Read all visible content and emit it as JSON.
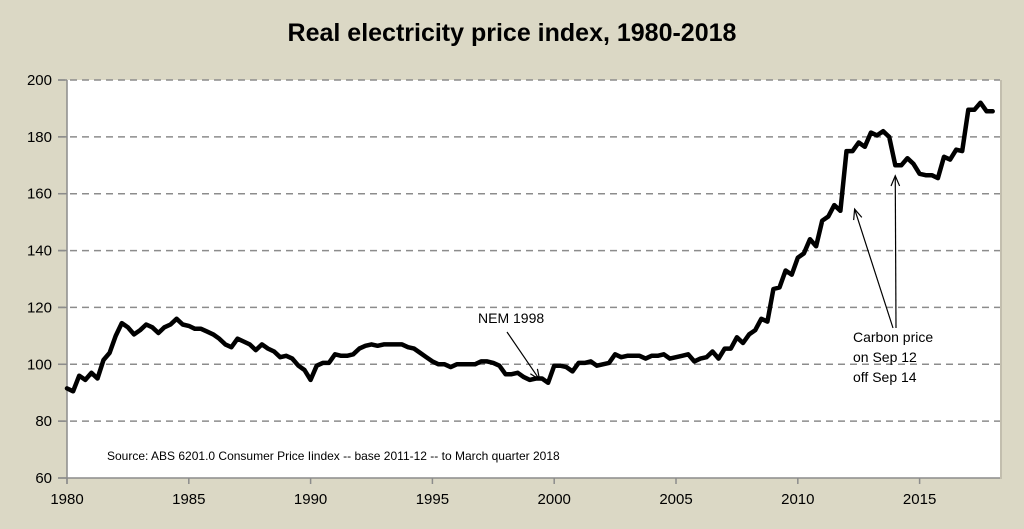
{
  "chart_data": {
    "type": "line",
    "title": "Real electricity price index, 1980-2018",
    "xlabel": "",
    "ylabel": "",
    "xlim": [
      1980,
      2018.3
    ],
    "ylim": [
      60,
      200
    ],
    "grid": true,
    "grid_style": "dashed-horizontal",
    "legend": "none",
    "x_ticks": [
      1980,
      1985,
      1990,
      1995,
      2000,
      2005,
      2010,
      2015
    ],
    "x_tick_labels": [
      "1980",
      "1985",
      "1990",
      "1995",
      "2000",
      "2005",
      "2010",
      "2015"
    ],
    "y_ticks": [
      60,
      80,
      100,
      120,
      140,
      160,
      180,
      200
    ],
    "y_tick_labels": [
      "60",
      "80",
      "100",
      "120",
      "140",
      "160",
      "180",
      "200"
    ],
    "series": [
      {
        "name": "Real electricity price index",
        "color": "#000000",
        "x": [
          1980.0,
          1980.25,
          1980.5,
          1980.75,
          1981.0,
          1981.25,
          1981.5,
          1981.75,
          1982.0,
          1982.25,
          1982.5,
          1982.75,
          1983.0,
          1983.25,
          1983.5,
          1983.75,
          1984.0,
          1984.25,
          1984.5,
          1984.75,
          1985.0,
          1985.25,
          1985.5,
          1985.75,
          1986.0,
          1986.25,
          1986.5,
          1986.75,
          1987.0,
          1987.25,
          1987.5,
          1987.75,
          1988.0,
          1988.25,
          1988.5,
          1988.75,
          1989.0,
          1989.25,
          1989.5,
          1989.75,
          1990.0,
          1990.25,
          1990.5,
          1990.75,
          1991.0,
          1991.25,
          1991.5,
          1991.75,
          1992.0,
          1992.25,
          1992.5,
          1992.75,
          1993.0,
          1993.25,
          1993.5,
          1993.75,
          1994.0,
          1994.25,
          1994.5,
          1994.75,
          1995.0,
          1995.25,
          1995.5,
          1995.75,
          1996.0,
          1996.25,
          1996.5,
          1996.75,
          1997.0,
          1997.25,
          1997.5,
          1997.75,
          1998.0,
          1998.25,
          1998.5,
          1998.75,
          1999.0,
          1999.25,
          1999.5,
          1999.75,
          2000.0,
          2000.25,
          2000.5,
          2000.75,
          2001.0,
          2001.25,
          2001.5,
          2001.75,
          2002.0,
          2002.25,
          2002.5,
          2002.75,
          2003.0,
          2003.25,
          2003.5,
          2003.75,
          2004.0,
          2004.25,
          2004.5,
          2004.75,
          2005.0,
          2005.25,
          2005.5,
          2005.75,
          2006.0,
          2006.25,
          2006.5,
          2006.75,
          2007.0,
          2007.25,
          2007.5,
          2007.75,
          2008.0,
          2008.25,
          2008.5,
          2008.75,
          2009.0,
          2009.25,
          2009.5,
          2009.75,
          2010.0,
          2010.25,
          2010.5,
          2010.75,
          2011.0,
          2011.25,
          2011.5,
          2011.75,
          2012.0,
          2012.25,
          2012.5,
          2012.75,
          2013.0,
          2013.25,
          2013.5,
          2013.75,
          2014.0,
          2014.25,
          2014.5,
          2014.75,
          2015.0,
          2015.25,
          2015.5,
          2015.75,
          2016.0,
          2016.25,
          2016.5,
          2016.75,
          2017.0,
          2017.25,
          2017.5,
          2017.75,
          2018.0
        ],
        "values": [
          91.5,
          90.5,
          96,
          94.5,
          97,
          95,
          101.5,
          104,
          110,
          114.5,
          113,
          110.5,
          112,
          114,
          113,
          111,
          113,
          114,
          116,
          114,
          113.5,
          112.5,
          112.5,
          111.5,
          110.5,
          109,
          107,
          106,
          109,
          108,
          107,
          105,
          107,
          105.5,
          104.5,
          102.5,
          103,
          102,
          99.5,
          98,
          94.5,
          99.5,
          100.5,
          100.5,
          103.5,
          103,
          103,
          103.5,
          105.5,
          106.5,
          107,
          106.5,
          107,
          107,
          107,
          107,
          106,
          105.5,
          104,
          102.5,
          101,
          100,
          100,
          99,
          100,
          100,
          100,
          100,
          101,
          101,
          100.5,
          99.5,
          96.5,
          96.5,
          97,
          95.5,
          94.5,
          95,
          95,
          93.5,
          99.5,
          99.5,
          99,
          97.5,
          100.5,
          100.5,
          101,
          99.5,
          100,
          100.5,
          103.5,
          102.5,
          103,
          103,
          103,
          102,
          103,
          103,
          103.5,
          102,
          102.5,
          103,
          103.5,
          101,
          102,
          102.5,
          104.5,
          102,
          105.5,
          105.5,
          109.5,
          107.5,
          110.5,
          112,
          116,
          115,
          126.5,
          127,
          133,
          131.5,
          137.5,
          139,
          144,
          141.5,
          150.5,
          152,
          156,
          154,
          175,
          175,
          178,
          176.5,
          181.5,
          180.5,
          182,
          180,
          170,
          170,
          172.5,
          170.5,
          167,
          166.5,
          166.5,
          165.5,
          173,
          172,
          175.5,
          175,
          189.5,
          189.5,
          192,
          189,
          189
        ]
      }
    ],
    "annotations": [
      {
        "text": "NEM 1998",
        "target_x": 1999.4,
        "target_y": 96,
        "arrow": true
      },
      {
        "lines": [
          "Carbon price",
          "on Sep 12",
          "off Sep 14"
        ],
        "targets": [
          {
            "x": 2012.25,
            "y": 156
          },
          {
            "x": 2014.0,
            "y": 167
          }
        ],
        "arrow": true
      }
    ],
    "source_note": "Source:  ABS 6201.0 Consumer Price Iindex -- base 2011-12 -- to March quarter 2018"
  }
}
